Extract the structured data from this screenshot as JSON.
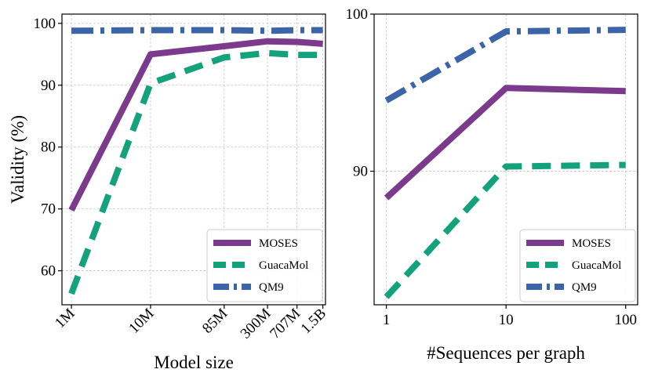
{
  "chart_data": [
    {
      "type": "line",
      "title": "",
      "xlabel": "Model size",
      "ylabel": "Validity (%)",
      "xscale": "log",
      "x": [
        1,
        10,
        85,
        300,
        707,
        1500
      ],
      "x_tick_labels": [
        "1M",
        "10M",
        "85M",
        "300M",
        "707M",
        "1.5B"
      ],
      "xlim": [
        0.76,
        1620
      ],
      "ylim": [
        54.5,
        101.5
      ],
      "yticks": [
        60,
        70,
        80,
        90,
        100
      ],
      "y_tick_labels": [
        "60",
        "70",
        "80",
        "90",
        "100"
      ],
      "grid": true,
      "legend_position": "lower-right",
      "series": [
        {
          "name": "MOSES",
          "values": [
            69.8,
            95.0,
            96.3,
            97.1,
            97.0,
            96.7
          ],
          "color": "#7b3a8c",
          "style": "solid"
        },
        {
          "name": "GuacaMol",
          "values": [
            56.3,
            90.3,
            94.5,
            95.2,
            94.9,
            94.9
          ],
          "color": "#14a27c",
          "style": "dashed"
        },
        {
          "name": "QM9",
          "values": [
            98.8,
            98.9,
            98.9,
            98.8,
            98.9,
            98.9
          ],
          "color": "#3c64a8",
          "style": "dashdot"
        }
      ]
    },
    {
      "type": "line",
      "title": "",
      "xlabel": "#Sequences per graph",
      "ylabel": "",
      "xscale": "log",
      "x": [
        1,
        10,
        100
      ],
      "x_tick_labels": [
        "1",
        "10",
        "100"
      ],
      "xlim": [
        0.79,
        126
      ],
      "ylim": [
        81.5,
        100
      ],
      "yticks": [
        90,
        100
      ],
      "y_tick_labels": [
        "90",
        "100"
      ],
      "grid": true,
      "legend_position": "lower-right",
      "series": [
        {
          "name": "MOSES",
          "values": [
            88.3,
            95.3,
            95.1
          ],
          "color": "#7b3a8c",
          "style": "solid"
        },
        {
          "name": "GuacaMol",
          "values": [
            82.0,
            90.3,
            90.4
          ],
          "color": "#14a27c",
          "style": "dashed"
        },
        {
          "name": "QM9",
          "values": [
            94.5,
            98.9,
            99.0
          ],
          "color": "#3c64a8",
          "style": "dashdot"
        }
      ]
    }
  ]
}
